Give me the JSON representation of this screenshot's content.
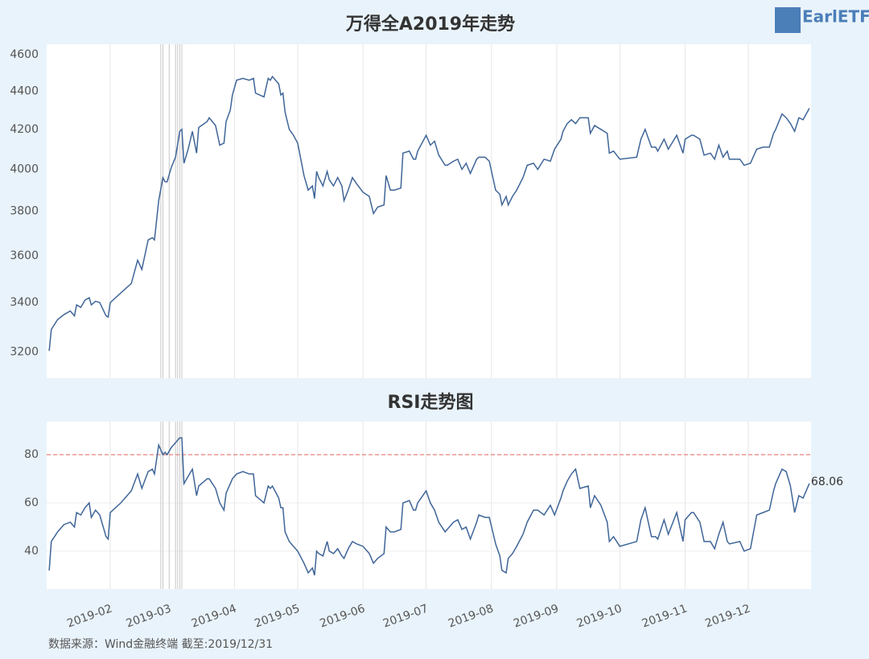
{
  "logo": "EarlETF",
  "source": "数据来源：Wind金融终端 截至:2019/12/31",
  "chart_data": [
    {
      "type": "line",
      "title": "万得全A2019年走势",
      "log_scale": true,
      "grid": "x",
      "xlim": [
        1.8,
        364.8
      ],
      "xticks": [
        32,
        60,
        91,
        121,
        152,
        182,
        213,
        244,
        274,
        305,
        335
      ],
      "ylim": [
        3100,
        4660
      ],
      "yticks": [
        3200,
        3400,
        3600,
        3800,
        4000,
        4200,
        4400,
        4600
      ],
      "vlines": [
        56,
        57,
        60,
        63,
        64,
        65,
        66
      ],
      "x": [
        3,
        4,
        7,
        10,
        13,
        15,
        16,
        18,
        20,
        22,
        23,
        25,
        27,
        30,
        31,
        32,
        37,
        42,
        45,
        47,
        50,
        52,
        53,
        55,
        57,
        58,
        59,
        61,
        63,
        65,
        66,
        67,
        69,
        71,
        73,
        74,
        78,
        79,
        82,
        84,
        86,
        87,
        89,
        90,
        92,
        95,
        98,
        100,
        101,
        105,
        107,
        108,
        109,
        112,
        113,
        114,
        115,
        117,
        119,
        121,
        124,
        126,
        128,
        129,
        130,
        131,
        133,
        135,
        136,
        138,
        140,
        142,
        143,
        145,
        147,
        149,
        152,
        155,
        157,
        159,
        162,
        163,
        165,
        167,
        170,
        171,
        174,
        176,
        177,
        178,
        182,
        184,
        186,
        188,
        191,
        192,
        195,
        197,
        199,
        201,
        203,
        206,
        207,
        210,
        212,
        215,
        217,
        218,
        220,
        221,
        223,
        225,
        228,
        230,
        233,
        235,
        238,
        241,
        243,
        246,
        247,
        249,
        251,
        253,
        255,
        259,
        260,
        262,
        265,
        268,
        269,
        271,
        274,
        282,
        284,
        286,
        289,
        291,
        292,
        295,
        297,
        301,
        304,
        305,
        308,
        309,
        312,
        314,
        317,
        319,
        321,
        323,
        325,
        326,
        331,
        333,
        336,
        339,
        342,
        345,
        347,
        348,
        351,
        353,
        355,
        357,
        359,
        361,
        364
      ],
      "series": [
        {
          "color": "#3f6598",
          "values": [
            3205,
            3290,
            3330,
            3350,
            3365,
            3345,
            3390,
            3380,
            3410,
            3420,
            3390,
            3405,
            3400,
            3345,
            3340,
            3400,
            3440,
            3480,
            3580,
            3540,
            3670,
            3680,
            3670,
            3850,
            3960,
            3940,
            3940,
            4010,
            4060,
            4190,
            4200,
            4030,
            4100,
            4190,
            4080,
            4210,
            4240,
            4260,
            4220,
            4120,
            4130,
            4240,
            4300,
            4380,
            4460,
            4470,
            4460,
            4470,
            4390,
            4370,
            4470,
            4460,
            4480,
            4440,
            4380,
            4390,
            4290,
            4200,
            4170,
            4130,
            3970,
            3900,
            3920,
            3860,
            3990,
            3960,
            3920,
            3990,
            3950,
            3920,
            3960,
            3920,
            3850,
            3900,
            3960,
            3930,
            3890,
            3870,
            3790,
            3820,
            3830,
            3970,
            3900,
            3900,
            3910,
            4080,
            4090,
            4050,
            4050,
            4090,
            4170,
            4120,
            4140,
            4070,
            4020,
            4020,
            4040,
            4050,
            4000,
            4030,
            3980,
            4050,
            4060,
            4060,
            4040,
            3900,
            3880,
            3830,
            3870,
            3830,
            3870,
            3900,
            3960,
            4020,
            4030,
            4000,
            4050,
            4040,
            4100,
            4150,
            4190,
            4230,
            4250,
            4230,
            4260,
            4260,
            4180,
            4220,
            4200,
            4180,
            4080,
            4090,
            4050,
            4060,
            4150,
            4200,
            4110,
            4110,
            4090,
            4150,
            4100,
            4170,
            4080,
            4150,
            4170,
            4170,
            4150,
            4070,
            4080,
            4050,
            4120,
            4060,
            4090,
            4050,
            4050,
            4020,
            4030,
            4100,
            4110,
            4110,
            4180,
            4200,
            4280,
            4260,
            4230,
            4190,
            4260,
            4250,
            4310
          ]
        }
      ]
    },
    {
      "type": "line",
      "title": "RSI走势图",
      "grid": "both",
      "xlim": [
        1.8,
        364.8
      ],
      "xticks": [
        {
          "value": 32,
          "label": "2019-02"
        },
        {
          "value": 60,
          "label": "2019-03"
        },
        {
          "value": 91,
          "label": "2019-04"
        },
        {
          "value": 121,
          "label": "2019-05"
        },
        {
          "value": 152,
          "label": "2019-06"
        },
        {
          "value": 182,
          "label": "2019-07"
        },
        {
          "value": 213,
          "label": "2019-08"
        },
        {
          "value": 244,
          "label": "2019-09"
        },
        {
          "value": 274,
          "label": "2019-10"
        },
        {
          "value": 305,
          "label": "2019-11"
        },
        {
          "value": 335,
          "label": "2019-12"
        }
      ],
      "ylim": [
        24.3,
        93.7
      ],
      "yticks": [
        40,
        60,
        80
      ],
      "hline": {
        "value": 80,
        "color": "#e8736f"
      },
      "vlines": [
        56,
        57,
        60,
        63,
        64,
        65,
        66
      ],
      "x": [
        3,
        4,
        7,
        10,
        13,
        15,
        16,
        18,
        20,
        22,
        23,
        25,
        27,
        30,
        31,
        32,
        37,
        42,
        45,
        47,
        50,
        52,
        53,
        55,
        57,
        58,
        59,
        61,
        63,
        65,
        66,
        67,
        69,
        71,
        73,
        74,
        78,
        79,
        82,
        84,
        86,
        87,
        89,
        90,
        92,
        95,
        98,
        100,
        101,
        105,
        107,
        108,
        109,
        112,
        113,
        114,
        115,
        117,
        119,
        121,
        124,
        126,
        128,
        129,
        130,
        131,
        133,
        135,
        136,
        138,
        140,
        142,
        143,
        145,
        147,
        149,
        152,
        155,
        157,
        159,
        162,
        163,
        165,
        167,
        170,
        171,
        174,
        176,
        177,
        178,
        182,
        184,
        186,
        188,
        191,
        192,
        195,
        197,
        199,
        201,
        203,
        206,
        207,
        210,
        212,
        215,
        217,
        218,
        220,
        221,
        223,
        225,
        228,
        230,
        233,
        235,
        238,
        241,
        243,
        246,
        247,
        249,
        251,
        253,
        255,
        259,
        260,
        262,
        265,
        268,
        269,
        271,
        274,
        282,
        284,
        286,
        289,
        291,
        292,
        295,
        297,
        301,
        304,
        305,
        308,
        309,
        312,
        314,
        317,
        319,
        321,
        323,
        325,
        326,
        331,
        333,
        336,
        339,
        342,
        345,
        347,
        348,
        351,
        353,
        355,
        357,
        359,
        361,
        364
      ],
      "series": [
        {
          "color": "#3f6598",
          "values": [
            32,
            44,
            48,
            51,
            52,
            50,
            56,
            55,
            58,
            60,
            54,
            57,
            55,
            46,
            45,
            56,
            60,
            65,
            72,
            66,
            73,
            74,
            72,
            84,
            80,
            81,
            80,
            83,
            85,
            87,
            87,
            68,
            71,
            74,
            63,
            67,
            70,
            70,
            66,
            60,
            57,
            64,
            68,
            70,
            72,
            73,
            72,
            72,
            63,
            60,
            67,
            66,
            67,
            62,
            58,
            58,
            48,
            44,
            42,
            40,
            35,
            31,
            33,
            30,
            40,
            39,
            38,
            44,
            40,
            39,
            41,
            38,
            37,
            41,
            44,
            43,
            42,
            39,
            35,
            37,
            39,
            50,
            48,
            48,
            49,
            60,
            61,
            57,
            57,
            60,
            65,
            60,
            57,
            52,
            48,
            49,
            52,
            53,
            49,
            50,
            45,
            52,
            55,
            54,
            54,
            43,
            38,
            32,
            31,
            37,
            39,
            42,
            47,
            52,
            57,
            57,
            55,
            59,
            55,
            62,
            65,
            69,
            72,
            74,
            66,
            67,
            58,
            63,
            59,
            52,
            44,
            46,
            42,
            44,
            53,
            58,
            46,
            46,
            45,
            53,
            47,
            56,
            44,
            53,
            56,
            56,
            52,
            44,
            44,
            41,
            47,
            52,
            44,
            43,
            44,
            40,
            41,
            55,
            56,
            57,
            65,
            68,
            74,
            73,
            67,
            56,
            63,
            62,
            68.06
          ]
        }
      ]
    }
  ]
}
